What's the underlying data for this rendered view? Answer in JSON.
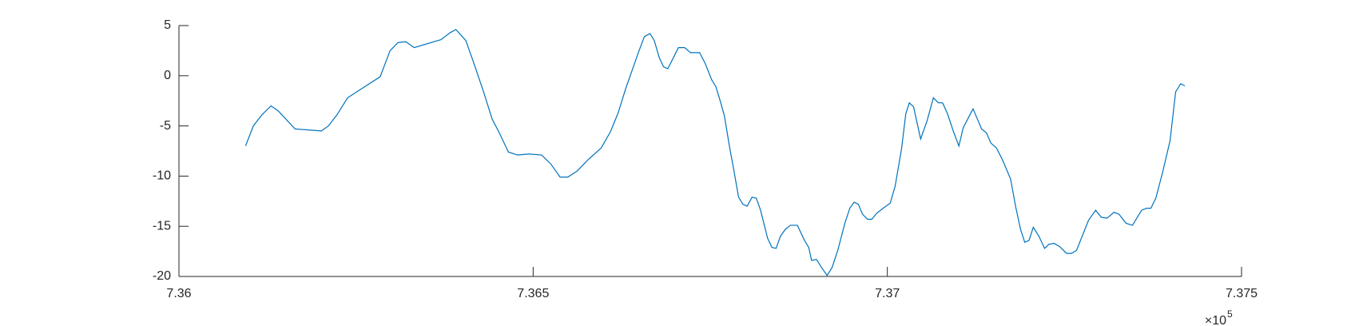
{
  "chart_data": {
    "type": "line",
    "x": [
      736094,
      736105,
      736117,
      736130,
      736140,
      736164,
      736201,
      736211,
      736223,
      736238,
      736284,
      736298,
      736309,
      736320,
      736332,
      736370,
      736383,
      736391,
      736405,
      736417,
      736430,
      736442,
      736453,
      736465,
      736478,
      736494,
      736512,
      736525,
      736538,
      736549,
      736562,
      736577,
      736596,
      736609,
      736620,
      736631,
      736640,
      736649,
      736657,
      736665,
      736671,
      736678,
      736684,
      736690,
      736698,
      736705,
      736714,
      736722,
      736735,
      736743,
      736752,
      736758,
      736764,
      736770,
      736777,
      736783,
      736790,
      736796,
      736802,
      736809,
      736815,
      736821,
      736831,
      736837,
      736843,
      736849,
      736856,
      736863,
      736873,
      736883,
      736889,
      736893,
      736900,
      736907,
      736915,
      736922,
      736930,
      736940,
      736947,
      736953,
      736959,
      736965,
      736972,
      736978,
      736985,
      736994,
      737004,
      737011,
      737020,
      737026,
      737031,
      737037,
      737047,
      737056,
      737065,
      737072,
      737078,
      737085,
      737093,
      737101,
      737107,
      737115,
      737121,
      737127,
      737133,
      737140,
      737146,
      737154,
      737162,
      737174,
      737181,
      737188,
      737194,
      737200,
      737206,
      737214,
      737222,
      737228,
      737235,
      737243,
      737253,
      737260,
      737267,
      737275,
      737284,
      737294,
      737302,
      737310,
      737320,
      737327,
      737337,
      737346,
      737352,
      737359,
      737366,
      737372,
      737379,
      737389,
      737399,
      737407,
      737414,
      737420
    ],
    "series": [
      {
        "color": "#0072bd",
        "values": [
          -7.0,
          -5.0,
          -3.9,
          -3.0,
          -3.5,
          -5.3,
          -5.5,
          -5.0,
          -3.9,
          -2.2,
          -0.1,
          2.5,
          3.3,
          3.4,
          2.8,
          3.6,
          4.3,
          4.6,
          3.5,
          1.1,
          -1.6,
          -4.3,
          -5.8,
          -7.6,
          -7.9,
          -7.8,
          -7.9,
          -8.8,
          -10.1,
          -10.1,
          -9.5,
          -8.4,
          -7.2,
          -5.6,
          -3.7,
          -1.2,
          0.6,
          2.4,
          3.9,
          4.2,
          3.5,
          1.8,
          0.9,
          0.7,
          1.8,
          2.8,
          2.8,
          2.3,
          2.3,
          1.2,
          -0.4,
          -1.1,
          -2.5,
          -4.0,
          -7.0,
          -9.3,
          -12.1,
          -12.8,
          -13.0,
          -12.1,
          -12.2,
          -13.4,
          -16.2,
          -17.1,
          -17.2,
          -16.0,
          -15.3,
          -14.9,
          -14.9,
          -16.4,
          -17.1,
          -18.4,
          -18.3,
          -19.1,
          -19.9,
          -19.1,
          -17.4,
          -14.7,
          -13.2,
          -12.6,
          -12.8,
          -13.8,
          -14.3,
          -14.3,
          -13.7,
          -13.2,
          -12.7,
          -11.0,
          -7.3,
          -3.8,
          -2.7,
          -3.1,
          -6.3,
          -4.5,
          -2.2,
          -2.7,
          -2.7,
          -3.8,
          -5.5,
          -7.0,
          -5.2,
          -4.1,
          -3.3,
          -4.3,
          -5.3,
          -5.7,
          -6.7,
          -7.2,
          -8.3,
          -10.3,
          -13.0,
          -15.3,
          -16.6,
          -16.4,
          -15.1,
          -16.0,
          -17.2,
          -16.8,
          -16.7,
          -17.0,
          -17.7,
          -17.7,
          -17.4,
          -16.0,
          -14.4,
          -13.4,
          -14.1,
          -14.2,
          -13.6,
          -13.8,
          -14.7,
          -14.9,
          -14.2,
          -13.4,
          -13.2,
          -13.2,
          -12.2,
          -9.5,
          -6.5,
          -1.6,
          -0.8,
          -1.0
        ]
      }
    ],
    "xlim": [
      736000,
      737500
    ],
    "xticks": [
      {
        "value": 736000,
        "label": "7.36"
      },
      {
        "value": 736500,
        "label": "7.365"
      },
      {
        "value": 737000,
        "label": "7.37"
      },
      {
        "value": 737500,
        "label": "7.375"
      }
    ],
    "x_multiplier": {
      "base": "×10",
      "exponent": "5"
    },
    "ylim": [
      -20,
      5
    ],
    "yticks": [
      -20,
      -15,
      -10,
      -5,
      0,
      5
    ],
    "grid": false
  }
}
